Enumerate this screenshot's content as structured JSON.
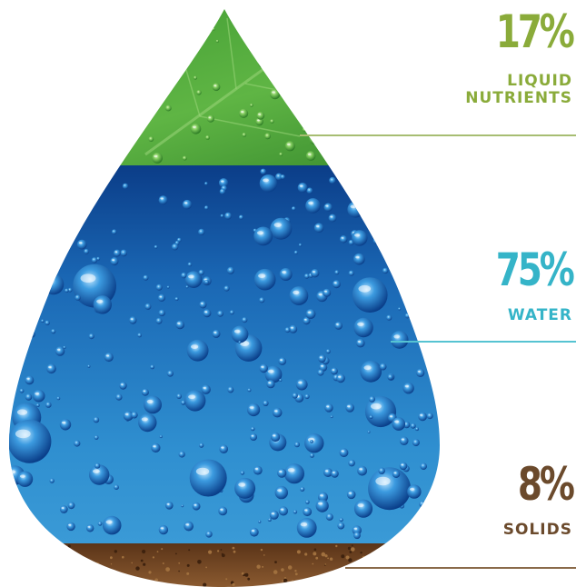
{
  "colors": {
    "liquid": "#8aab3a",
    "liquid_line": "#a7bd72",
    "water": "#35b4c8",
    "water_line": "#56c3d2",
    "solids": "#6b4a2c",
    "solids_line": "#8a6a4a",
    "leaf_dark": "#2f7d2a",
    "leaf_light": "#6fc24a",
    "water_dark": "#0a3a82",
    "water_light": "#2f90d2",
    "soil": "#7a4a26"
  },
  "icons": {
    "drop": "water-drop-icon",
    "leaf": "leaf-icon",
    "bubbles": "water-bubbles-icon",
    "soil": "soil-icon"
  },
  "segments": [
    {
      "key": "liquid",
      "percent": "17%",
      "label_lines": [
        "LIQUID",
        "NUTRIENTS"
      ],
      "value": 17
    },
    {
      "key": "water",
      "percent": "75%",
      "label_lines": [
        "WATER"
      ],
      "value": 75
    },
    {
      "key": "solids",
      "percent": "8%",
      "label_lines": [
        "SOLIDS"
      ],
      "value": 8
    }
  ]
}
